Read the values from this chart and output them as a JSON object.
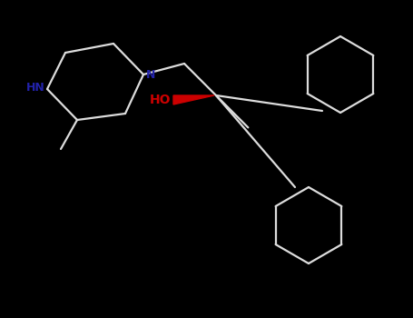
{
  "background_color": "#000000",
  "bond_color": "#111111",
  "nitrogen_color": "#2222aa",
  "oxygen_color": "#cc0000",
  "figsize": [
    4.55,
    3.5
  ],
  "dpi": 100,
  "atoms": {
    "HN_label": "HN",
    "N_label": "N",
    "HO_label": "HO"
  }
}
